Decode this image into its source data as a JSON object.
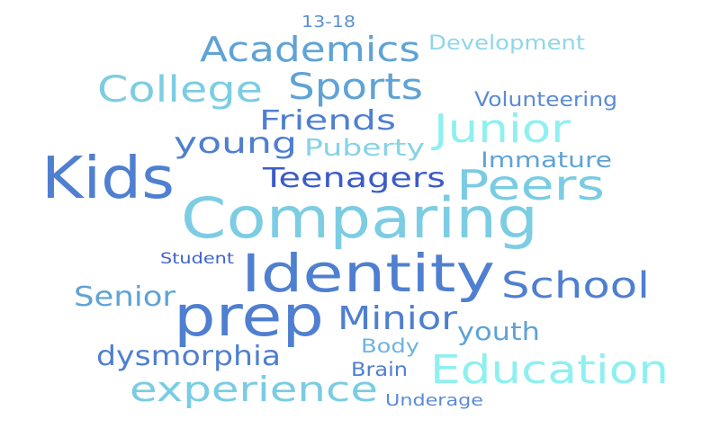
{
  "background": "#ffffff",
  "words": [
    {
      "text": "13-18",
      "color": "#5b8fd6"
    },
    {
      "text": "Academics",
      "color": "#5fa3d6"
    },
    {
      "text": "Development",
      "color": "#8fd6ea"
    },
    {
      "text": "College",
      "color": "#7ccde3"
    },
    {
      "text": "Sports",
      "color": "#5fa3d6"
    },
    {
      "text": "Volunteering",
      "color": "#5b8bd6"
    },
    {
      "text": "Friends",
      "color": "#4f7fd0"
    },
    {
      "text": "Junior",
      "color": "#8ef0f0"
    },
    {
      "text": "young",
      "color": "#4f7fd0"
    },
    {
      "text": "Puberty",
      "color": "#86d3e6"
    },
    {
      "text": "Immature",
      "color": "#5fa3d6"
    },
    {
      "text": "Kids",
      "color": "#4f7fd0"
    },
    {
      "text": "Teenagers",
      "color": "#3b5bc8"
    },
    {
      "text": "Peers",
      "color": "#79cce3"
    },
    {
      "text": "Comparing",
      "color": "#7ccde3"
    },
    {
      "text": "Student",
      "color": "#3f64c8"
    },
    {
      "text": "Identity",
      "color": "#4f7fd0"
    },
    {
      "text": "School",
      "color": "#4f7fd0"
    },
    {
      "text": "Senior",
      "color": "#5fa3d6"
    },
    {
      "text": "prep",
      "color": "#4f7fd0"
    },
    {
      "text": "Minior",
      "color": "#4f7fd0"
    },
    {
      "text": "youth",
      "color": "#5fa3d6"
    },
    {
      "text": "Body",
      "color": "#6fb3e0"
    },
    {
      "text": "dysmorphia",
      "color": "#4f7fd0"
    },
    {
      "text": "Brain",
      "color": "#4f7fd0"
    },
    {
      "text": "Education",
      "color": "#8ef0f0"
    },
    {
      "text": "experience",
      "color": "#79cce3"
    },
    {
      "text": "Underage",
      "color": "#5b8bd6"
    }
  ]
}
